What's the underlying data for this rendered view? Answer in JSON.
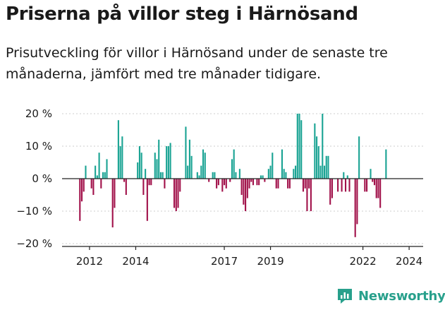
{
  "header": {
    "title": "Priserna på villor steg i Härnösand",
    "subtitle": "Prisutveckling för villor i Härnösand under de senaste tre månaderna, jämfört med tre månader tidigare."
  },
  "brand": {
    "name": "Newsworthy",
    "icon": "newsworthy-chart-icon",
    "color": "#28a08c"
  },
  "colors": {
    "positive": "#19a393",
    "negative": "#a1114a",
    "axis": "#222222",
    "grid": "#cccccc"
  },
  "chart_data": {
    "type": "bar",
    "ylim": [
      -20,
      20
    ],
    "yticks": [
      20,
      10,
      0,
      -10,
      -20
    ],
    "ytick_labels": [
      "20 %",
      "10 %",
      "0 %",
      "−10 %",
      "−20 %"
    ],
    "xtick_labels": [
      "2012",
      "2014",
      "2017",
      "2019",
      "2022",
      "2024"
    ],
    "xtick_index": [
      5,
      29,
      75,
      99,
      147,
      171
    ],
    "annotation": {
      "label": "9 %",
      "index": 176
    },
    "values": [
      -13,
      -7,
      -4,
      4,
      0,
      0,
      -3,
      -5,
      4,
      1,
      8,
      -3,
      2,
      2,
      6,
      0,
      0,
      -15,
      -9,
      0,
      18,
      10,
      13,
      -1,
      -5,
      0,
      0,
      0,
      0,
      0,
      5,
      10,
      8,
      -5,
      3,
      -13,
      -2,
      -2,
      0,
      8,
      6,
      12,
      2,
      2,
      -3,
      10,
      10,
      11,
      0,
      -9,
      -10,
      -9,
      -4,
      0,
      0,
      16,
      4,
      12,
      7,
      0,
      0,
      2,
      1,
      4,
      9,
      8,
      0,
      -1,
      0,
      2,
      2,
      -3,
      -2,
      0,
      -4,
      -2,
      -3,
      0,
      -1,
      6,
      9,
      2,
      0,
      3,
      -5,
      -8,
      -10,
      -6,
      -3,
      -1,
      -2,
      0,
      -2,
      -2,
      1,
      1,
      -1,
      0,
      3,
      4,
      8,
      0,
      -3,
      -3,
      0,
      9,
      3,
      2,
      -3,
      -3,
      0,
      3,
      4,
      20,
      20,
      18,
      -4,
      -3,
      -10,
      -3,
      -10,
      0,
      17,
      13,
      10,
      4,
      20,
      4,
      7,
      7,
      -8,
      -6,
      0,
      0,
      -4,
      0,
      -4,
      2,
      -4,
      1,
      -4,
      0,
      0,
      -18,
      -14,
      13,
      0,
      0,
      -4,
      -4,
      0,
      3,
      -1,
      -2,
      -6,
      -6,
      -9,
      0,
      0,
      9
    ]
  }
}
